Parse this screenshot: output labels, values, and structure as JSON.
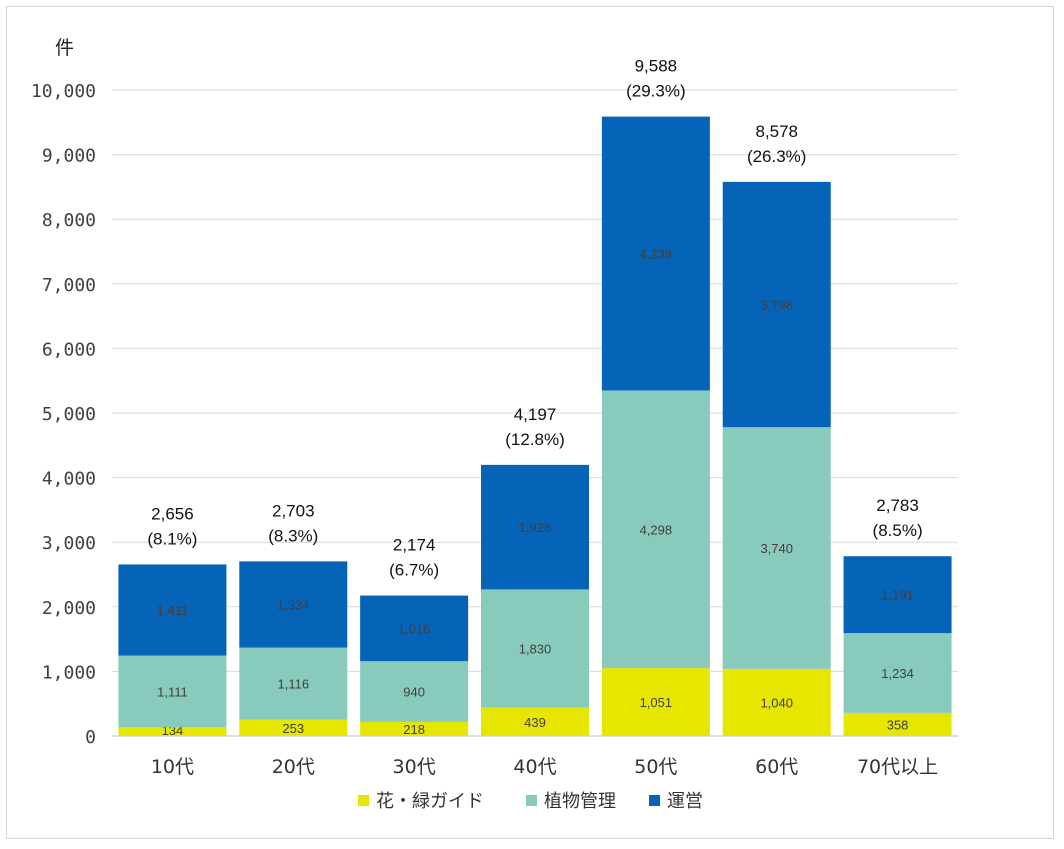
{
  "chart_data": {
    "type": "bar",
    "stacked": true,
    "unit_label": "件",
    "categories": [
      "10代",
      "20代",
      "30代",
      "40代",
      "50代",
      "60代",
      "70代以上"
    ],
    "series": [
      {
        "name": "花・緑ガイド",
        "color": "#e6e600",
        "values": [
          134,
          253,
          218,
          439,
          1051,
          1040,
          358
        ],
        "labels": [
          "134",
          "253",
          "218",
          "439",
          "1,051",
          "1,040",
          "358"
        ]
      },
      {
        "name": "植物管理",
        "color": "#88cbbd",
        "values": [
          1111,
          1116,
          940,
          1830,
          4298,
          3740,
          1234
        ],
        "labels": [
          "1,111",
          "1,116",
          "940",
          "1,830",
          "4,298",
          "3,740",
          "1,234"
        ]
      },
      {
        "name": "運営",
        "color": "#0563b8",
        "values": [
          1411,
          1334,
          1016,
          1928,
          4239,
          3798,
          1191
        ],
        "labels": [
          "1,411",
          "1,334",
          "1,016",
          "1,928",
          "4,239",
          "3,798",
          "1,191"
        ]
      }
    ],
    "totals": [
      "2,656",
      "2,703",
      "2,174",
      "4,197",
      "9,588",
      "8,578",
      "2,783"
    ],
    "total_values": [
      2656,
      2703,
      2174,
      4197,
      9588,
      8578,
      2783
    ],
    "percentages": [
      "(8.1%)",
      "(8.3%)",
      "(6.7%)",
      "(12.8%)",
      "(29.3%)",
      "(26.3%)",
      "(8.5%)"
    ],
    "ylim": [
      0,
      10000
    ],
    "yticks": [
      0,
      1000,
      2000,
      3000,
      4000,
      5000,
      6000,
      7000,
      8000,
      9000,
      10000
    ],
    "ytick_labels": [
      "0",
      "1,000",
      "2,000",
      "3,000",
      "4,000",
      "5,000",
      "6,000",
      "7,000",
      "8,000",
      "9,000",
      "10,000"
    ],
    "grid": true,
    "legend_position": "bottom"
  }
}
